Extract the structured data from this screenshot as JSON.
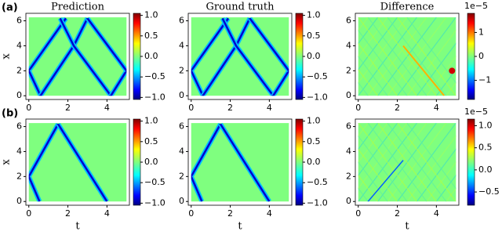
{
  "chart_data": [
    {
      "type": "heatmap",
      "panel_label": "(a)",
      "title": "Prediction",
      "ylabel": "x",
      "xlim": [
        -0.15,
        5.15
      ],
      "xticks": [
        0,
        2,
        4
      ],
      "ylim": [
        -0.3,
        6.6
      ],
      "yticks": [
        0,
        2,
        4,
        6
      ],
      "colorbar": {
        "lim": [
          -1.05,
          1.05
        ],
        "ticks": [
          {
            "value": -1,
            "label": "−1.0"
          },
          {
            "value": -0.5,
            "label": "−0.5"
          },
          {
            "value": 0,
            "label": "0.0"
          },
          {
            "value": 0.5,
            "label": "0.5"
          },
          {
            "value": 1,
            "label": "1.0"
          }
        ]
      }
    },
    {
      "type": "heatmap",
      "title": "Ground truth",
      "xlim": [
        -0.15,
        5.15
      ],
      "xticks": [
        0,
        2,
        4
      ],
      "ylim": [
        -0.3,
        6.6
      ],
      "yticks": [
        0,
        2,
        4,
        6
      ],
      "colorbar": {
        "lim": [
          -1.05,
          1.05
        ],
        "ticks": [
          {
            "value": -1,
            "label": "−1.0"
          },
          {
            "value": -0.5,
            "label": "−0.5"
          },
          {
            "value": 0,
            "label": "0.0"
          },
          {
            "value": 0.5,
            "label": "0.5"
          },
          {
            "value": 1,
            "label": "1.0"
          }
        ]
      }
    },
    {
      "type": "heatmap",
      "title": "Difference",
      "xlim": [
        -0.15,
        5.15
      ],
      "xticks": [
        0,
        2,
        4
      ],
      "ylim": [
        -0.3,
        6.6
      ],
      "yticks": [
        0,
        2,
        4,
        6
      ],
      "colorbar": {
        "scale_label": "1e−5",
        "lim": [
          -1.8,
          1.8
        ],
        "ticks": [
          {
            "value": -1,
            "label": "−1"
          },
          0,
          1
        ]
      }
    },
    {
      "type": "heatmap",
      "panel_label": "(b)",
      "ylabel": "x",
      "xlabel": "t",
      "xlim": [
        -0.15,
        5.15
      ],
      "xticks": [
        0,
        2,
        4
      ],
      "ylim": [
        -0.3,
        6.6
      ],
      "yticks": [
        0,
        2,
        4,
        6
      ],
      "colorbar": {
        "lim": [
          -1.05,
          1.05
        ],
        "ticks": [
          {
            "value": -1,
            "label": "−1.0"
          },
          {
            "value": -0.5,
            "label": "−0.5"
          },
          {
            "value": 0,
            "label": "0.0"
          },
          {
            "value": 0.5,
            "label": "0.5"
          },
          {
            "value": 1,
            "label": "1.0"
          }
        ]
      }
    },
    {
      "type": "heatmap",
      "xlabel": "t",
      "xlim": [
        -0.15,
        5.15
      ],
      "xticks": [
        0,
        2,
        4
      ],
      "ylim": [
        -0.3,
        6.6
      ],
      "yticks": [
        0,
        2,
        4,
        6
      ],
      "colorbar": {
        "lim": [
          -1.05,
          1.05
        ],
        "ticks": [
          {
            "value": -1,
            "label": "−1.0"
          },
          {
            "value": -0.5,
            "label": "−0.5"
          },
          {
            "value": 0,
            "label": "0.0"
          },
          {
            "value": 0.5,
            "label": "0.5"
          },
          {
            "value": 1,
            "label": "1.0"
          }
        ]
      }
    },
    {
      "type": "heatmap",
      "xlabel": "t",
      "xlim": [
        -0.15,
        5.15
      ],
      "xticks": [
        0,
        2,
        4
      ],
      "ylim": [
        -0.3,
        6.6
      ],
      "yticks": [
        0,
        2,
        4,
        6
      ],
      "colorbar": {
        "scale_label": "1e−5",
        "lim": [
          -0.8,
          1.15
        ],
        "ticks": [
          {
            "value": -0.5,
            "label": "−0.5"
          },
          {
            "value": 0,
            "label": "0.0"
          },
          {
            "value": 0.5,
            "label": "0.5"
          },
          {
            "value": 1,
            "label": "1.0"
          }
        ]
      }
    }
  ]
}
